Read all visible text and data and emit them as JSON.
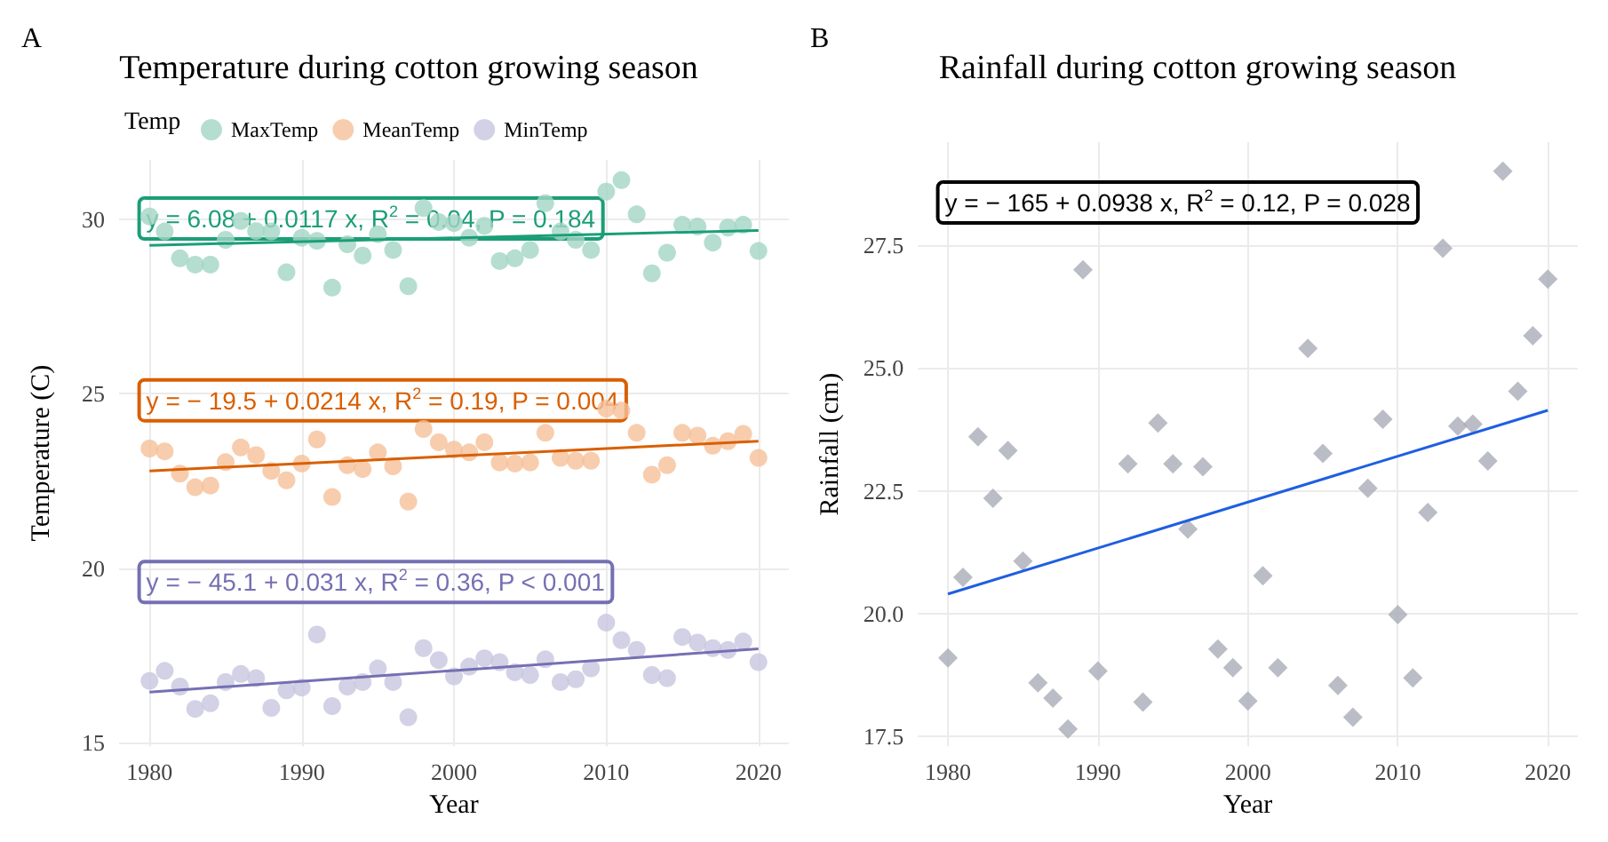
{
  "chart_data": [
    {
      "type": "scatter",
      "title": "Temperature during cotton growing season",
      "xlabel": "Year",
      "ylabel": "Temperature (C)",
      "legend_title": "Temp",
      "legend": "top left",
      "grid": true,
      "marker": "circle",
      "x": [
        1980,
        1981,
        1982,
        1983,
        1984,
        1985,
        1986,
        1987,
        1988,
        1989,
        1990,
        1991,
        1992,
        1993,
        1994,
        1995,
        1996,
        1997,
        1998,
        1999,
        2000,
        2001,
        2002,
        2003,
        2004,
        2005,
        2006,
        2007,
        2008,
        2009,
        2010,
        2011,
        2012,
        2013,
        2014,
        2015,
        2016,
        2017,
        2018,
        2019,
        2020
      ],
      "xlim": [
        1978,
        2022
      ],
      "xticks": [
        1980,
        1990,
        2000,
        2010,
        2020
      ],
      "ylim": [
        14.9,
        31.7
      ],
      "yticks": [
        15,
        20,
        25,
        30
      ],
      "series": [
        {
          "name": "MaxTemp",
          "color": "#a3d6c4",
          "values": [
            30.08,
            29.65,
            28.88,
            28.7,
            28.7,
            29.41,
            29.95,
            29.66,
            29.65,
            28.48,
            29.47,
            29.38,
            28.04,
            29.28,
            28.96,
            29.57,
            29.12,
            28.08,
            30.32,
            29.92,
            29.89,
            29.47,
            29.81,
            28.8,
            28.88,
            29.12,
            30.46,
            29.65,
            29.41,
            29.12,
            30.79,
            31.12,
            30.14,
            28.45,
            29.04,
            29.84,
            29.79,
            29.33,
            29.76,
            29.84,
            29.09
          ]
        },
        {
          "name": "MeanTemp",
          "color": "#f5c09a",
          "values": [
            23.43,
            23.35,
            22.71,
            22.32,
            22.37,
            23.04,
            23.46,
            23.24,
            22.79,
            22.52,
            23.0,
            23.69,
            22.04,
            22.95,
            22.84,
            23.32,
            22.92,
            21.91,
            23.99,
            23.61,
            23.4,
            23.32,
            23.61,
            23.03,
            23.0,
            23.03,
            23.88,
            23.16,
            23.08,
            23.08,
            24.57,
            24.52,
            23.88,
            22.68,
            22.95,
            23.88,
            23.8,
            23.51,
            23.64,
            23.85,
            23.16
          ]
        },
        {
          "name": "MinTemp",
          "color": "#c8c5e0",
          "values": [
            16.77,
            17.06,
            16.61,
            15.97,
            16.13,
            16.74,
            16.97,
            16.85,
            16.0,
            16.5,
            16.58,
            18.1,
            16.05,
            16.61,
            16.74,
            17.13,
            16.74,
            15.73,
            17.71,
            17.37,
            16.9,
            17.18,
            17.42,
            17.31,
            17.02,
            16.94,
            17.39,
            16.74,
            16.82,
            17.13,
            18.44,
            17.94,
            17.66,
            16.94,
            16.85,
            18.03,
            17.87,
            17.71,
            17.66,
            17.9,
            17.31
          ]
        },
        {
          "type": "line",
          "marker": "none",
          "color": "#1b9e77",
          "values": [
            29.25,
            null,
            null,
            null,
            null,
            null,
            null,
            null,
            null,
            null,
            null,
            null,
            null,
            null,
            null,
            null,
            null,
            null,
            null,
            null,
            null,
            null,
            null,
            null,
            null,
            null,
            null,
            null,
            null,
            null,
            null,
            null,
            null,
            null,
            null,
            null,
            null,
            null,
            null,
            null,
            29.68
          ]
        },
        {
          "type": "line",
          "marker": "none",
          "color": "#d95f02",
          "values": [
            22.79,
            null,
            null,
            null,
            null,
            null,
            null,
            null,
            null,
            null,
            null,
            null,
            null,
            null,
            null,
            null,
            null,
            null,
            null,
            null,
            null,
            null,
            null,
            null,
            null,
            null,
            null,
            null,
            null,
            null,
            null,
            null,
            null,
            null,
            null,
            null,
            null,
            null,
            null,
            null,
            23.64
          ]
        },
        {
          "type": "line",
          "marker": "none",
          "color": "#7570b3",
          "values": [
            16.45,
            null,
            null,
            null,
            null,
            null,
            null,
            null,
            null,
            null,
            null,
            null,
            null,
            null,
            null,
            null,
            null,
            null,
            null,
            null,
            null,
            null,
            null,
            null,
            null,
            null,
            null,
            null,
            null,
            null,
            null,
            null,
            null,
            null,
            null,
            null,
            null,
            null,
            null,
            null,
            17.69
          ]
        }
      ],
      "annotations": [
        "A",
        "y = 6.08 + 0.0117 x, R$^{2}$ = 0.04, P = 0.184",
        "y = − 19.5 + 0.0214 x, R$^{2}$ = 0.19, P = 0.004",
        "y = − 45.1 + 0.031 x, R$^{2}$ = 0.36, P < 0.001"
      ]
    },
    {
      "type": "scatter",
      "title": "Rainfall during cotton growing season",
      "xlabel": "Year",
      "ylabel": "Rainfall (cm)",
      "grid": true,
      "marker": "diamond",
      "x": [
        1980,
        1981,
        1982,
        1983,
        1984,
        1985,
        1986,
        1987,
        1988,
        1989,
        1990,
        1991,
        1992,
        1993,
        1994,
        1995,
        1996,
        1997,
        1998,
        1999,
        2000,
        2001,
        2002,
        2003,
        2004,
        2005,
        2006,
        2007,
        2008,
        2009,
        2010,
        2011,
        2012,
        2013,
        2014,
        2015,
        2016,
        2017,
        2018,
        2019,
        2020
      ],
      "xlim": [
        1978,
        2022
      ],
      "xticks": [
        1980,
        1990,
        2000,
        2010,
        2020
      ],
      "ylim": [
        17.3,
        29.6
      ],
      "yticks": [
        17.5,
        {
          "value": 20,
          "label": "20.0"
        },
        22.5,
        {
          "value": 25,
          "label": "25.0"
        },
        27.5
      ],
      "series": [
        {
          "color": "#a9adb8",
          "values": [
            19.1,
            20.74,
            23.6,
            22.35,
            23.32,
            21.07,
            18.59,
            18.28,
            17.65,
            27.0,
            18.83,
            null,
            23.05,
            18.2,
            23.88,
            23.05,
            21.72,
            22.99,
            19.28,
            18.9,
            18.22,
            20.77,
            18.9,
            null,
            25.4,
            23.26,
            18.54,
            17.89,
            22.55,
            23.96,
            19.98,
            18.69,
            22.06,
            27.44,
            23.82,
            23.86,
            23.11,
            29.01,
            24.53,
            25.66,
            26.81
          ]
        },
        {
          "type": "line",
          "marker": "none",
          "color": "#1f5fe0",
          "values": [
            20.4,
            null,
            null,
            null,
            null,
            null,
            null,
            null,
            null,
            null,
            null,
            null,
            null,
            null,
            null,
            null,
            null,
            null,
            null,
            null,
            null,
            null,
            null,
            null,
            null,
            null,
            null,
            null,
            null,
            null,
            null,
            null,
            null,
            null,
            null,
            null,
            null,
            null,
            null,
            null,
            24.14
          ]
        }
      ],
      "annotations": [
        "B",
        "y = − 165 + 0.0938 x, R$^{2}$ = 0.12, P = 0.028"
      ]
    }
  ]
}
